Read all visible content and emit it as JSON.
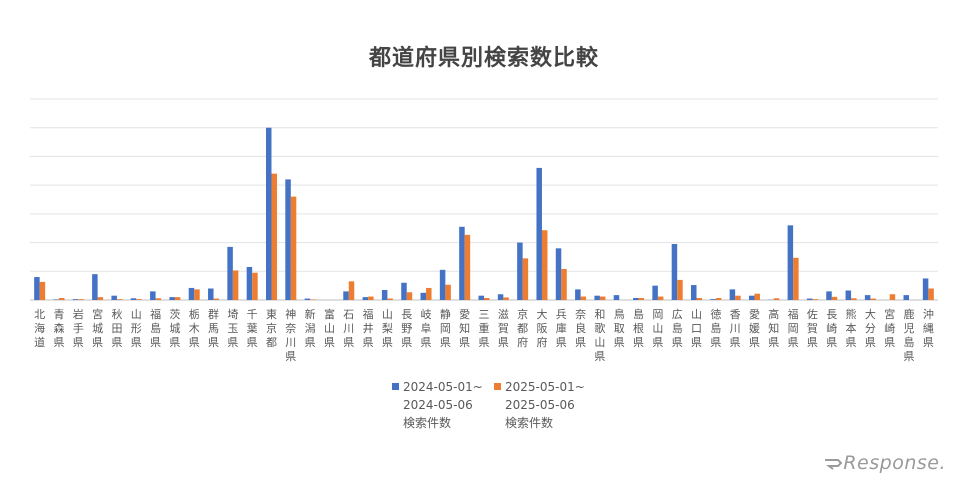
{
  "chart_data": {
    "type": "bar",
    "title": "都道府県別検索数比較",
    "xlabel": "",
    "ylabel": "",
    "grid": true,
    "legend": "bottom",
    "categories": [
      "北海道",
      "青森県",
      "岩手県",
      "宮城県",
      "秋田県",
      "山形県",
      "福島県",
      "茨城県",
      "栃木県",
      "群馬県",
      "埼玉県",
      "千葉県",
      "東京都",
      "神奈川県",
      "新潟県",
      "富山県",
      "石川県",
      "福井県",
      "山梨県",
      "長野県",
      "岐阜県",
      "静岡県",
      "愛知県",
      "三重県",
      "滋賀県",
      "京都府",
      "大阪府",
      "兵庫県",
      "奈良県",
      "和歌山県",
      "鳥取県",
      "島根県",
      "岡山県",
      "広島県",
      "山口県",
      "徳島県",
      "香川県",
      "愛媛県",
      "高知県",
      "福岡県",
      "佐賀県",
      "長崎県",
      "熊本県",
      "大分県",
      "宮崎県",
      "鹿児島県",
      "沖縄県"
    ],
    "ylim": [
      0,
      70
    ],
    "series": [
      {
        "name": "2024-05-01~ 2024-05-06 検索件数",
        "color": "#4472c4",
        "values": [
          8,
          0.2,
          0.3,
          9,
          1.5,
          0.6,
          3,
          1,
          4.2,
          4,
          18.5,
          11.5,
          60,
          42,
          0.5,
          0,
          3,
          1,
          3.5,
          6,
          2.5,
          10.5,
          25.5,
          1.5,
          2,
          20,
          46,
          18,
          3.7,
          1.5,
          1.7,
          0.7,
          5,
          19.5,
          5.2,
          0.3,
          3.7,
          1.5,
          0.1,
          26,
          0.5,
          3,
          3.3,
          1.7,
          0,
          1.7,
          7.5
        ]
      },
      {
        "name": "2025-05-01~ 2025-05-06 検索件数",
        "color": "#ed7d31",
        "values": [
          6.3,
          0.7,
          0.3,
          1,
          0.3,
          0.3,
          0.6,
          1,
          3.7,
          0.5,
          10.3,
          9.5,
          44,
          36,
          0.2,
          0,
          6.5,
          1.2,
          0.5,
          2.7,
          4.2,
          5.3,
          22.7,
          0.7,
          0.9,
          14.5,
          24.3,
          10.8,
          1.2,
          1.2,
          0,
          0.7,
          1.2,
          7,
          0.7,
          0.7,
          1.5,
          2.2,
          0.6,
          14.7,
          0.3,
          1.1,
          0.6,
          0.5,
          2,
          0,
          4
        ]
      }
    ]
  },
  "legend": {
    "series1_line1": "2024-05-01~",
    "series1_line2": "2024-05-06",
    "series1_line3": "検索件数",
    "series2_line1": "2025-05-01~",
    "series2_line2": "2025-05-06",
    "series2_line3": "検索件数"
  },
  "watermark": {
    "text": "Response."
  }
}
